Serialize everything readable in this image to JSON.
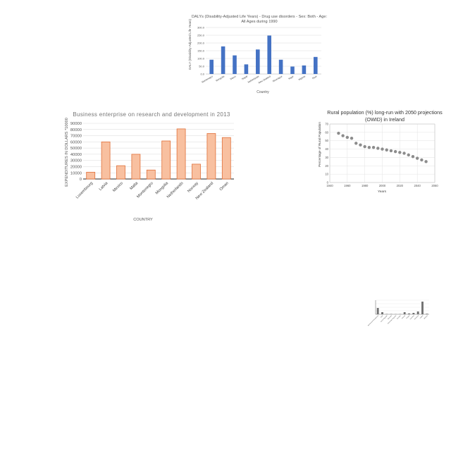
{
  "chart_data": [
    {
      "id": "dalys",
      "type": "bar",
      "title": "DALYs (Disability-Adjusted Life Years) - Drug use disorders - Sex: Both - Age: All Ages during 1990",
      "title_lines": [
        "DALYs (Disability-Adjusted Life Years) - Drug use disorders - Sex: Both - Age:",
        "All Ages during 1990"
      ],
      "xlabel": "Country",
      "ylabel": "DALY (Disability-Adjusted Life Years)",
      "categories": [
        "Montenegro",
        "Mongolia",
        "Nauru",
        "Nepal",
        "Netherlands",
        "New Zealand",
        "Nicaragua",
        "Niger",
        "Nigeria",
        "Niue"
      ],
      "values": [
        92,
        178,
        120,
        62,
        158,
        248,
        92,
        48,
        55,
        110
      ],
      "ylim": [
        0,
        300
      ],
      "yticks": [
        "0.0",
        "50.0",
        "100.0",
        "150.0",
        "200.0",
        "250.0",
        "300.0"
      ],
      "color": "#4472c4",
      "grid": true
    },
    {
      "id": "business",
      "type": "bar",
      "title": "Business enterprise on research and development in 2013",
      "xlabel": "COUNTRY",
      "ylabel": "EXPENDITURES IN DOLLARS *10000",
      "categories": [
        "Luxembourg",
        "Latvia",
        "Mexico",
        "Malta",
        "Montenegro",
        "Mongolia",
        "Netherlands",
        "Norway",
        "New Zealand",
        "Oman"
      ],
      "values": [
        11000,
        60000,
        21500,
        40000,
        14500,
        61500,
        81000,
        24000,
        73500,
        67000
      ],
      "ylim": [
        0,
        90000
      ],
      "yticks": [
        "0",
        "10000",
        "20000",
        "30000",
        "40000",
        "50000",
        "60000",
        "70000",
        "80000",
        "90000"
      ],
      "fill": "#f8c0a0",
      "stroke": "#e0703a",
      "grid": true
    },
    {
      "id": "rural",
      "type": "scatter",
      "title": "Rural population (%) long-run with 2050 projections (OWID) in Ireland",
      "title_lines": [
        "Rural population (%) long-run with 2050 projections",
        "(OWID) in Ireland"
      ],
      "xlabel": "Years",
      "ylabel": "Percentage of Rural Population",
      "x": [
        1950,
        1955,
        1960,
        1965,
        1970,
        1975,
        1980,
        1985,
        1990,
        1995,
        2000,
        2005,
        2010,
        2015,
        2020,
        2025,
        2030,
        2035,
        2040,
        2045,
        2050
      ],
      "y": [
        59,
        56,
        54,
        53,
        47,
        45,
        43,
        42,
        42,
        41,
        40,
        39,
        38,
        37,
        36,
        35,
        33,
        31,
        29,
        27,
        25
      ],
      "xlim": [
        1940,
        2060
      ],
      "ylim": [
        0,
        70
      ],
      "xticks": [
        "1940",
        "1960",
        "1980",
        "2000",
        "2020",
        "2040",
        "2060"
      ],
      "yticks": [
        "0",
        "10",
        "20",
        "30",
        "40",
        "50",
        "60",
        "70"
      ],
      "color": "#8c8c8c",
      "grid": true
    },
    {
      "id": "tiny",
      "type": "bar",
      "categories": [
        "Bosnia and Herzegovina",
        "Chile",
        "Czech Republic",
        "Denmark",
        "Dominican Republic",
        "Ecuador",
        "Estonia",
        "Finland",
        "Germany",
        "Honduras",
        "Ireland",
        "Jamaica"
      ],
      "values": [
        9,
        3,
        0.5,
        0.5,
        0.3,
        0.4,
        3,
        1.2,
        2,
        4,
        18,
        0.8
      ],
      "ylim": [
        0,
        20
      ],
      "color": "#707070",
      "grid": true
    }
  ]
}
